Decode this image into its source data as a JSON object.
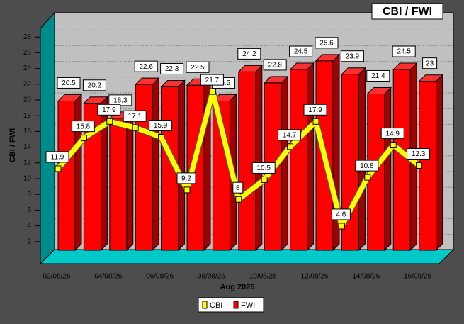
{
  "chart_data": {
    "type": "bar",
    "title": "CBI / FWI",
    "x_label": "Aug 2026",
    "y_label": "CBI / FWI",
    "categories": [
      "02/08/26",
      null,
      "04/08/26",
      null,
      "06/08/26",
      null,
      "08/08/26",
      null,
      "10/08/26",
      null,
      "12/08/26",
      null,
      "14/08/26",
      null,
      "16/08/26"
    ],
    "series": [
      {
        "name": "CBI",
        "type": "line",
        "color": "#ffff00",
        "values": [
          11.9,
          15.8,
          17.9,
          17.1,
          15.9,
          9.2,
          21.7,
          8,
          10.5,
          14.7,
          17.9,
          4.6,
          10.8,
          14.9,
          12.3
        ]
      },
      {
        "name": "FWI",
        "type": "bar",
        "color": "#ff0000",
        "values": [
          20.5,
          20.2,
          18.3,
          22.6,
          22.3,
          22.5,
          20.5,
          24.2,
          22.8,
          24.5,
          25.6,
          23.9,
          21.4,
          24.5,
          23
        ]
      }
    ],
    "ylim": [
      0,
      30
    ],
    "yticks": [
      2,
      4,
      6,
      8,
      10,
      12,
      14,
      16,
      18,
      20,
      22,
      24,
      26,
      28
    ],
    "grid": true,
    "legend": "bottom"
  }
}
